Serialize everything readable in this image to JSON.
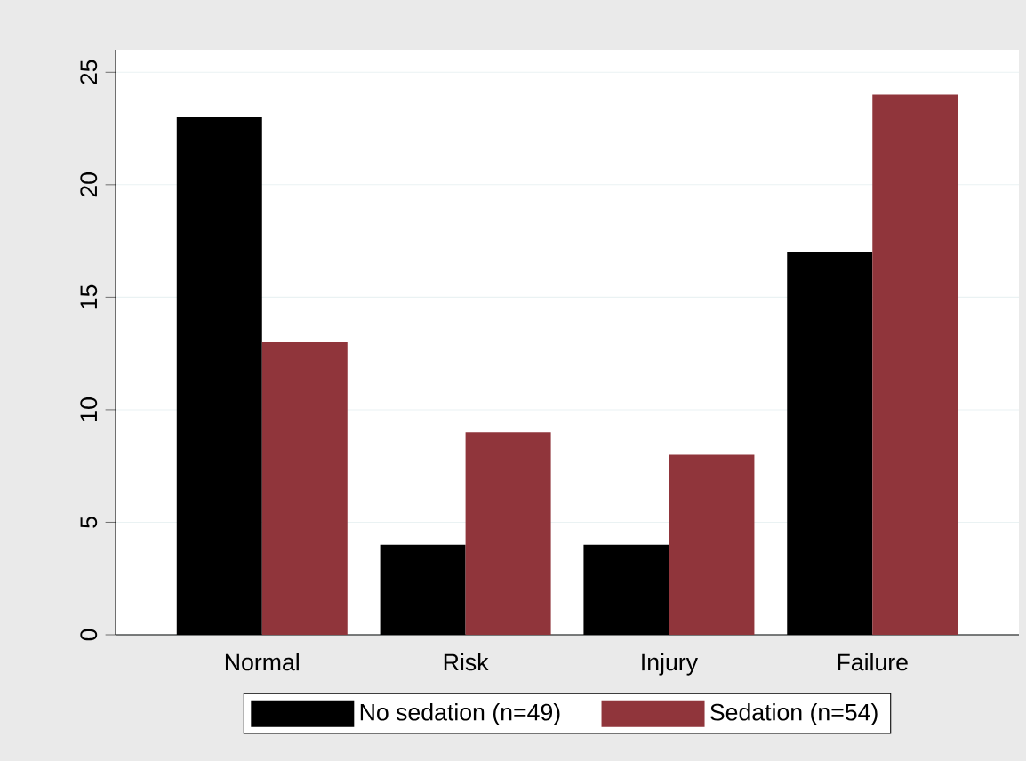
{
  "chart_data": {
    "type": "bar",
    "categories": [
      "Normal",
      "Risk",
      "Injury",
      "Failure"
    ],
    "series": [
      {
        "name": "No sedation (n=49)",
        "color": "#000000",
        "values": [
          23,
          4,
          4,
          17
        ]
      },
      {
        "name": "Sedation (n=54)",
        "color": "#90353b",
        "values": [
          13,
          9,
          8,
          24
        ]
      }
    ],
    "ylim": [
      0,
      26
    ],
    "yticks": [
      0,
      5,
      10,
      15,
      20,
      25
    ],
    "grid": "y",
    "legend": "bottom"
  }
}
